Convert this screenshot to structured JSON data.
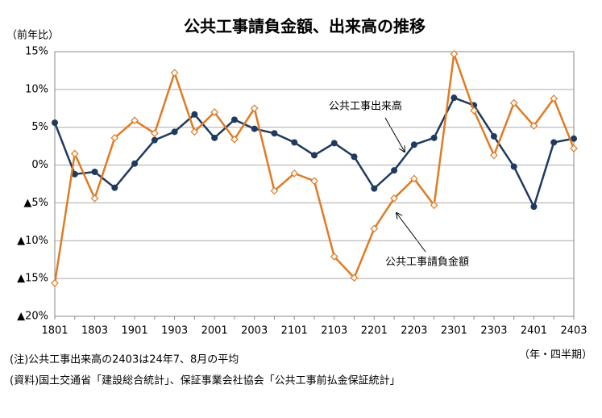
{
  "chart_data": {
    "type": "line",
    "title": "公共工事請負金額、出来高の推移",
    "y_label": "（前年比）",
    "x_label": "（年・四半期）",
    "categories": [
      "1801",
      null,
      "1803",
      null,
      "1901",
      null,
      "1903",
      null,
      "2001",
      null,
      "2003",
      null,
      "2101",
      null,
      "2103",
      null,
      "2201",
      null,
      "2203",
      null,
      "2301",
      null,
      "2303",
      null,
      "2401",
      null,
      "2403"
    ],
    "series": [
      {
        "name": "公共工事出来高",
        "color": "#1f3a5f",
        "marker": "circle",
        "values": [
          5.6,
          -1.2,
          -0.9,
          -3.0,
          0.2,
          3.3,
          4.4,
          6.7,
          3.6,
          6.0,
          4.8,
          4.2,
          3.0,
          1.3,
          2.9,
          1.1,
          -3.1,
          -0.7,
          2.7,
          3.6,
          8.9,
          7.9,
          3.8,
          -0.2,
          -5.5,
          3.0,
          3.5
        ]
      },
      {
        "name": "公共工事請負金額",
        "color": "#e07b24",
        "marker": "diamond",
        "values": [
          -15.6,
          1.5,
          -4.4,
          3.6,
          5.9,
          4.2,
          12.2,
          4.4,
          7.0,
          3.4,
          7.5,
          -3.4,
          -1.1,
          -2.1,
          -12.1,
          -14.9,
          -8.4,
          -4.4,
          -1.8,
          -5.3,
          14.7,
          7.2,
          1.3,
          8.2,
          5.2,
          8.8,
          2.2
        ]
      }
    ],
    "ylim": [
      -20,
      15
    ],
    "yticks": [
      {
        "value": 15,
        "label": "15%"
      },
      {
        "value": 10,
        "label": "10%"
      },
      {
        "value": 5,
        "label": "5%"
      },
      {
        "value": 0,
        "label": "0%"
      },
      {
        "value": -5,
        "label": "▲5%"
      },
      {
        "value": -10,
        "label": "▲10%"
      },
      {
        "value": -15,
        "label": "▲15%"
      },
      {
        "value": -20,
        "label": "▲20%"
      }
    ],
    "grid": true,
    "notes": [
      "(注)公共工事出来高の2403は24年7、8月の平均",
      "(資料)国土交通省「建設総合統計」、保証事業会社協会「公共工事前払金保証統計」"
    ]
  }
}
